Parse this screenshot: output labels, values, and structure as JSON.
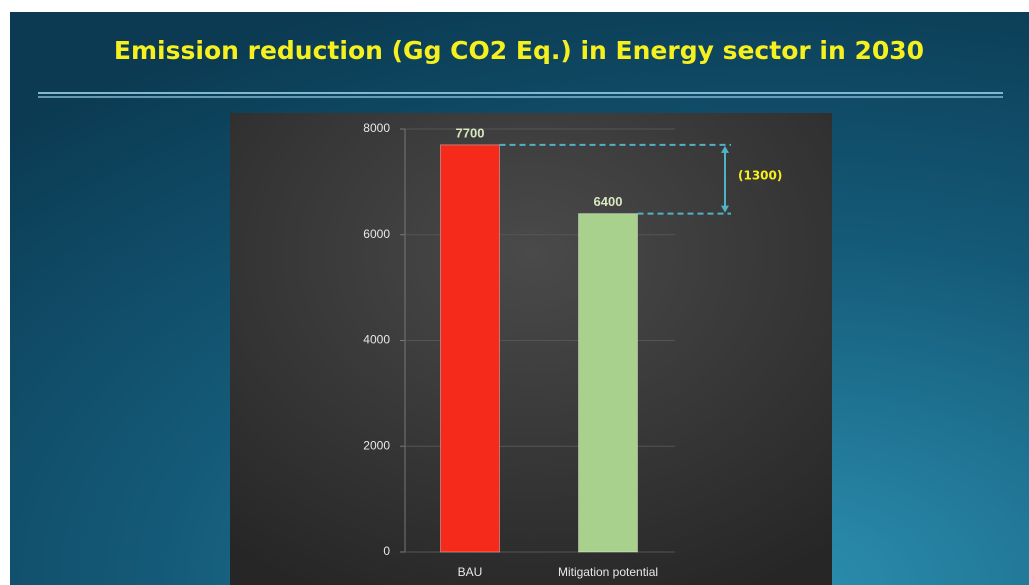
{
  "chart_data": {
    "type": "bar",
    "title": "Emission reduction (Gg CO2 Eq.) in Energy sector in 2030",
    "categories": [
      "BAU",
      "Mitigation potential"
    ],
    "values": [
      7700,
      6400
    ],
    "colors": [
      "#f52a1a",
      "#a9d18e"
    ],
    "ylim": [
      0,
      8000
    ],
    "yticks": [
      0,
      2000,
      4000,
      6000,
      8000
    ],
    "grid": true,
    "annotation": "(1300)"
  }
}
